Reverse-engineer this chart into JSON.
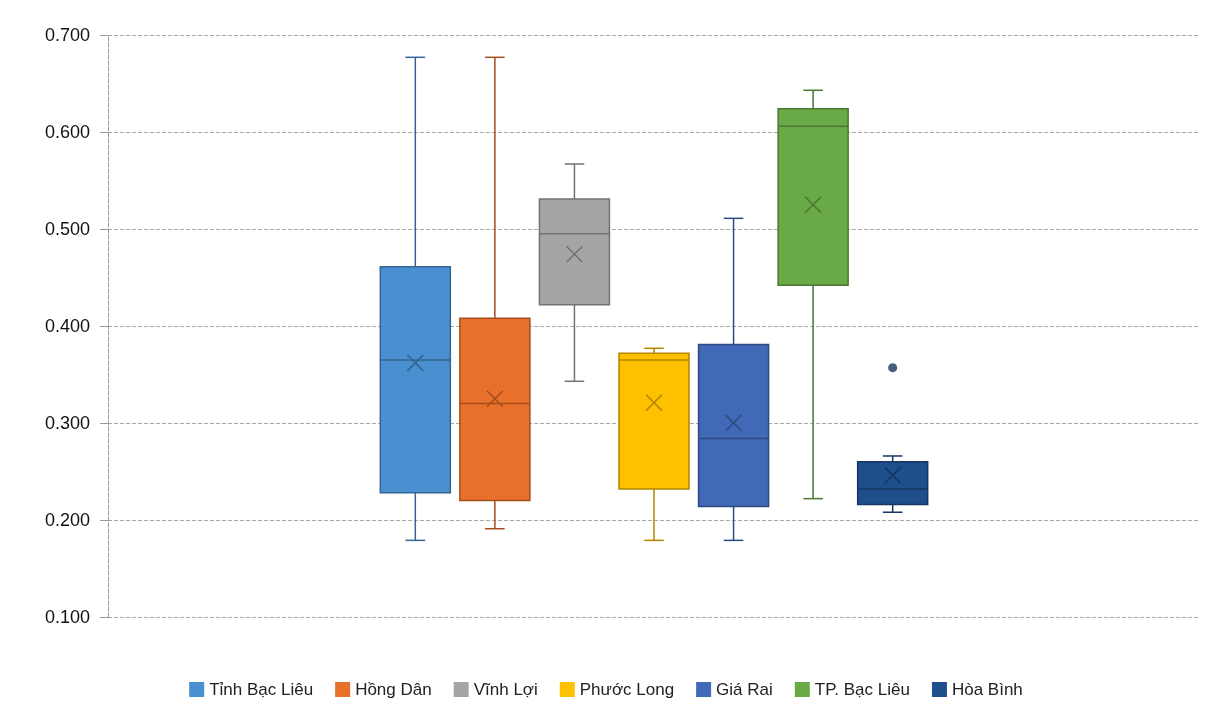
{
  "chart_data": {
    "type": "box",
    "categories": [
      null
    ],
    "series": [
      {
        "name": "Tỉnh Bạc Liêu",
        "color": "#4a90d0",
        "boxes": [
          {
            "low": 0.179,
            "q1": 0.228,
            "median": 0.365,
            "q3": 0.461,
            "high": 0.677,
            "mean": 0.362
          }
        ]
      },
      {
        "name": "Hồng Dân",
        "color": "#e8702a",
        "boxes": [
          {
            "low": 0.191,
            "q1": 0.22,
            "median": 0.32,
            "q3": 0.408,
            "high": 0.677,
            "mean": 0.325
          }
        ]
      },
      {
        "name": "Vĩnh Lợi",
        "color": "#a5a5a5",
        "boxes": [
          {
            "low": 0.343,
            "q1": 0.422,
            "median": 0.495,
            "q3": 0.531,
            "high": 0.567,
            "mean": 0.474
          }
        ]
      },
      {
        "name": "Phước Long",
        "color": "#ffc000",
        "boxes": [
          {
            "low": 0.179,
            "q1": 0.232,
            "median": 0.365,
            "q3": 0.372,
            "high": 0.377,
            "mean": 0.321
          }
        ]
      },
      {
        "name": "Giá Rai",
        "color": "#4169b8",
        "boxes": [
          {
            "low": 0.179,
            "q1": 0.214,
            "median": 0.284,
            "q3": 0.381,
            "high": 0.511,
            "mean": 0.3
          }
        ]
      },
      {
        "name": "TP. Bạc Liêu",
        "color": "#6aaa46",
        "boxes": [
          {
            "low": 0.222,
            "q1": 0.442,
            "median": 0.606,
            "q3": 0.624,
            "high": 0.643,
            "mean": 0.525
          }
        ]
      },
      {
        "name": "Hòa Bình",
        "color": "#1f4e8c",
        "boxes": [
          {
            "low": 0.208,
            "q1": 0.216,
            "median": 0.232,
            "q3": 0.26,
            "high": 0.266,
            "mean": 0.246,
            "outliers": [
              0.357
            ]
          }
        ]
      }
    ],
    "ylim": [
      0.1,
      0.7
    ],
    "yticks": [
      {
        "value": 0.1,
        "label": "0.100"
      },
      {
        "value": 0.2,
        "label": "0.200"
      },
      {
        "value": 0.3,
        "label": "0.300"
      },
      {
        "value": 0.4,
        "label": "0.400"
      },
      {
        "value": 0.5,
        "label": "0.500"
      },
      {
        "value": 0.6,
        "label": "0.600"
      },
      {
        "value": 0.7,
        "label": "0.700"
      }
    ],
    "grid": "y",
    "legend": "bottom"
  }
}
